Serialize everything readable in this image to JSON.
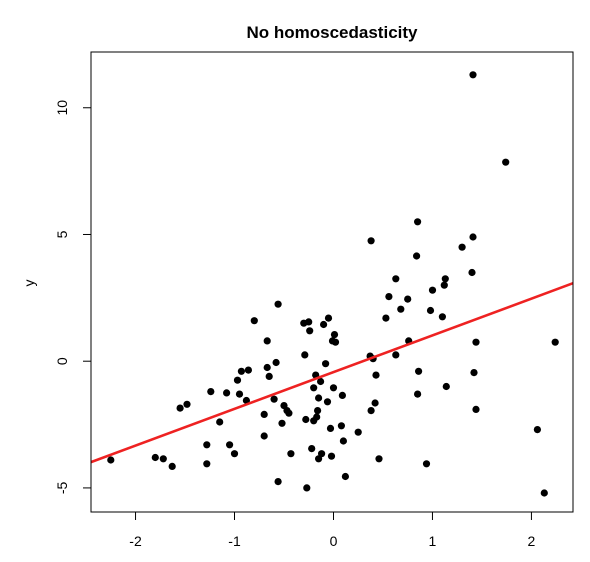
{
  "chart_data": {
    "type": "scatter",
    "title": "No homoscedasticity",
    "xlabel": "",
    "ylabel": "y",
    "xlim": [
      -2.45,
      2.42
    ],
    "ylim": [
      -5.95,
      12.2
    ],
    "x_ticks": [
      -2,
      -1,
      0,
      1,
      2
    ],
    "x_tick_labels": [
      "-2",
      "-1",
      "0",
      "1",
      "2"
    ],
    "y_ticks": [
      -5,
      0,
      5,
      10
    ],
    "y_tick_labels": [
      "-5",
      "0",
      "5",
      "10"
    ],
    "grid": false,
    "legend": "none",
    "point_color": "#000000",
    "fit_line": {
      "color": "#ee2222",
      "intercept": -0.43,
      "slope": 1.45
    },
    "points": [
      {
        "x": -2.25,
        "y": -3.9
      },
      {
        "x": -1.8,
        "y": -3.8
      },
      {
        "x": -1.72,
        "y": -3.85
      },
      {
        "x": -1.63,
        "y": -4.15
      },
      {
        "x": -1.55,
        "y": -1.85
      },
      {
        "x": -1.48,
        "y": -1.7
      },
      {
        "x": -1.28,
        "y": -3.3
      },
      {
        "x": -1.28,
        "y": -4.05
      },
      {
        "x": -1.24,
        "y": -1.2
      },
      {
        "x": -1.15,
        "y": -2.4
      },
      {
        "x": -1.08,
        "y": -1.25
      },
      {
        "x": -1.05,
        "y": -3.3
      },
      {
        "x": -1.0,
        "y": -3.65
      },
      {
        "x": -0.97,
        "y": -0.75
      },
      {
        "x": -0.95,
        "y": -1.3
      },
      {
        "x": -0.93,
        "y": -0.4
      },
      {
        "x": -0.88,
        "y": -1.55
      },
      {
        "x": -0.86,
        "y": -0.35
      },
      {
        "x": -0.8,
        "y": 1.6
      },
      {
        "x": -0.7,
        "y": -2.1
      },
      {
        "x": -0.7,
        "y": -2.95
      },
      {
        "x": -0.67,
        "y": 0.8
      },
      {
        "x": -0.67,
        "y": -0.25
      },
      {
        "x": -0.65,
        "y": -0.6
      },
      {
        "x": -0.6,
        "y": -1.5
      },
      {
        "x": -0.58,
        "y": -0.05
      },
      {
        "x": -0.56,
        "y": 2.25
      },
      {
        "x": -0.56,
        "y": -4.75
      },
      {
        "x": -0.52,
        "y": -2.45
      },
      {
        "x": -0.5,
        "y": -1.75
      },
      {
        "x": -0.47,
        "y": -1.95
      },
      {
        "x": -0.45,
        "y": -2.05
      },
      {
        "x": -0.43,
        "y": -3.65
      },
      {
        "x": -0.3,
        "y": 1.5
      },
      {
        "x": -0.29,
        "y": 0.25
      },
      {
        "x": -0.28,
        "y": -2.3
      },
      {
        "x": -0.27,
        "y": -5.0
      },
      {
        "x": -0.25,
        "y": 1.55
      },
      {
        "x": -0.24,
        "y": 1.2
      },
      {
        "x": -0.22,
        "y": -3.45
      },
      {
        "x": -0.2,
        "y": -1.05
      },
      {
        "x": -0.2,
        "y": -2.35
      },
      {
        "x": -0.18,
        "y": -0.55
      },
      {
        "x": -0.17,
        "y": -2.2
      },
      {
        "x": -0.16,
        "y": -1.95
      },
      {
        "x": -0.15,
        "y": -1.45
      },
      {
        "x": -0.15,
        "y": -3.85
      },
      {
        "x": -0.13,
        "y": -0.8
      },
      {
        "x": -0.12,
        "y": -3.65
      },
      {
        "x": -0.1,
        "y": 1.45
      },
      {
        "x": -0.08,
        "y": -0.1
      },
      {
        "x": -0.06,
        "y": -1.6
      },
      {
        "x": -0.05,
        "y": 1.7
      },
      {
        "x": -0.03,
        "y": -2.65
      },
      {
        "x": -0.02,
        "y": -3.75
      },
      {
        "x": -0.01,
        "y": 0.8
      },
      {
        "x": 0.0,
        "y": -1.05
      },
      {
        "x": 0.01,
        "y": 1.05
      },
      {
        "x": 0.02,
        "y": 0.75
      },
      {
        "x": 0.08,
        "y": -2.55
      },
      {
        "x": 0.09,
        "y": -1.35
      },
      {
        "x": 0.1,
        "y": -3.15
      },
      {
        "x": 0.12,
        "y": -4.55
      },
      {
        "x": 0.25,
        "y": -2.8
      },
      {
        "x": 0.37,
        "y": 0.2
      },
      {
        "x": 0.38,
        "y": 4.75
      },
      {
        "x": 0.38,
        "y": -1.95
      },
      {
        "x": 0.4,
        "y": 0.1
      },
      {
        "x": 0.42,
        "y": -1.65
      },
      {
        "x": 0.43,
        "y": -0.55
      },
      {
        "x": 0.46,
        "y": -3.85
      },
      {
        "x": 0.53,
        "y": 1.7
      },
      {
        "x": 0.56,
        "y": 2.55
      },
      {
        "x": 0.63,
        "y": 3.25
      },
      {
        "x": 0.63,
        "y": 0.25
      },
      {
        "x": 0.68,
        "y": 2.05
      },
      {
        "x": 0.75,
        "y": 2.45
      },
      {
        "x": 0.76,
        "y": 0.8
      },
      {
        "x": 0.84,
        "y": 4.15
      },
      {
        "x": 0.85,
        "y": 5.5
      },
      {
        "x": 0.85,
        "y": -1.3
      },
      {
        "x": 0.86,
        "y": -0.4
      },
      {
        "x": 0.94,
        "y": -4.05
      },
      {
        "x": 0.98,
        "y": 2.0
      },
      {
        "x": 1.0,
        "y": 2.8
      },
      {
        "x": 1.1,
        "y": 1.75
      },
      {
        "x": 1.12,
        "y": 3.0
      },
      {
        "x": 1.13,
        "y": 3.25
      },
      {
        "x": 1.14,
        "y": -1.0
      },
      {
        "x": 1.3,
        "y": 4.5
      },
      {
        "x": 1.4,
        "y": 3.5
      },
      {
        "x": 1.41,
        "y": 4.9
      },
      {
        "x": 1.41,
        "y": 11.3
      },
      {
        "x": 1.42,
        "y": -0.45
      },
      {
        "x": 1.44,
        "y": 0.75
      },
      {
        "x": 1.44,
        "y": -1.9
      },
      {
        "x": 1.74,
        "y": 7.85
      },
      {
        "x": 2.06,
        "y": -2.7
      },
      {
        "x": 2.13,
        "y": -5.2
      },
      {
        "x": 2.24,
        "y": 0.75
      }
    ]
  }
}
